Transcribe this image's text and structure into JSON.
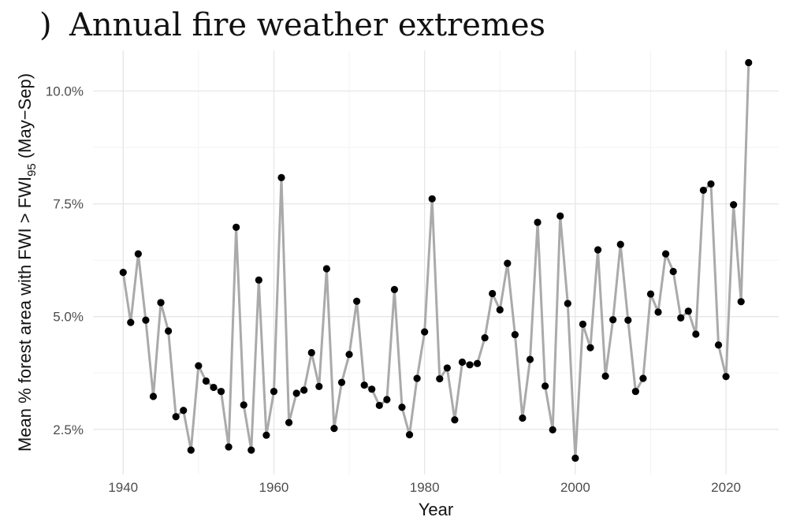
{
  "chart_data": {
    "type": "line",
    "title": "Annual fire weather extremes",
    "title_prefix": ")",
    "xlabel": "Year",
    "ylabel_parts": {
      "pre": "Mean % forest area with FWI > FWI",
      "sub": "95",
      "post": " (May−Sep)"
    },
    "xlim": [
      1936,
      2027
    ],
    "ylim": [
      1.5,
      10.9
    ],
    "x_ticks": [
      1940,
      1960,
      1980,
      2000,
      2020
    ],
    "x_tick_labels": [
      "1940",
      "1960",
      "1980",
      "2000",
      "2020"
    ],
    "y_ticks": [
      2.5,
      5.0,
      7.5,
      10.0
    ],
    "y_tick_labels": [
      "2.5%",
      "5.0%",
      "7.5%",
      "10.0%"
    ],
    "grid": true,
    "line_color": "#aaaaaa",
    "point_color": "#000000",
    "x": [
      1940,
      1941,
      1942,
      1943,
      1944,
      1945,
      1946,
      1947,
      1948,
      1949,
      1950,
      1951,
      1952,
      1953,
      1954,
      1955,
      1956,
      1957,
      1958,
      1959,
      1960,
      1961,
      1962,
      1963,
      1964,
      1965,
      1966,
      1967,
      1968,
      1969,
      1970,
      1971,
      1972,
      1973,
      1974,
      1975,
      1976,
      1977,
      1978,
      1979,
      1980,
      1981,
      1982,
      1983,
      1984,
      1985,
      1986,
      1987,
      1988,
      1989,
      1990,
      1991,
      1992,
      1993,
      1994,
      1995,
      1996,
      1997,
      1998,
      1999,
      2000,
      2001,
      2002,
      2003,
      2004,
      2005,
      2006,
      2007,
      2008,
      2009,
      2010,
      2011,
      2012,
      2013,
      2014,
      2015,
      2016,
      2017,
      2018,
      2019,
      2020,
      2021,
      2022,
      2023
    ],
    "y": [
      5.98,
      4.87,
      6.39,
      4.92,
      3.23,
      5.31,
      4.68,
      2.78,
      2.92,
      2.04,
      3.91,
      3.57,
      3.43,
      3.34,
      2.11,
      6.98,
      3.04,
      2.04,
      5.81,
      2.37,
      3.34,
      8.08,
      2.65,
      3.3,
      3.37,
      4.2,
      3.45,
      6.06,
      2.52,
      3.54,
      4.16,
      5.34,
      3.48,
      3.39,
      3.03,
      3.16,
      5.6,
      2.99,
      2.38,
      3.63,
      4.66,
      7.61,
      3.62,
      3.86,
      2.71,
      3.99,
      3.93,
      3.96,
      4.53,
      5.51,
      5.15,
      6.18,
      4.6,
      2.75,
      4.05,
      7.09,
      3.46,
      2.49,
      7.23,
      5.29,
      1.86,
      4.83,
      4.31,
      6.48,
      3.68,
      4.93,
      6.6,
      4.92,
      3.34,
      3.63,
      5.5,
      5.1,
      6.39,
      6.0,
      4.97,
      5.12,
      4.61,
      7.8,
      7.94,
      4.37,
      3.67,
      7.48,
      5.33,
      10.63
    ]
  }
}
